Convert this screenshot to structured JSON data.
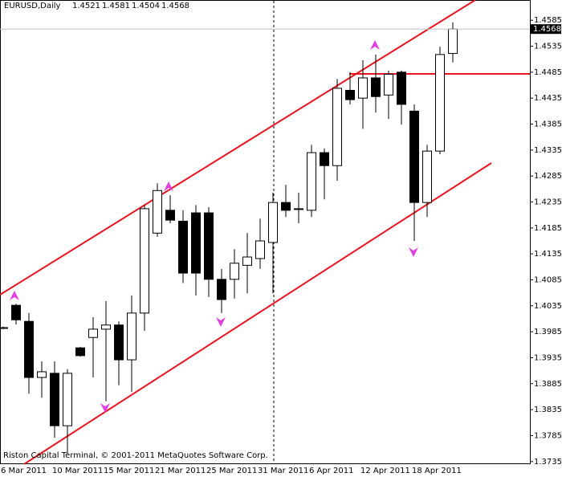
{
  "chart_data": {
    "type": "candlestick",
    "title": "EURUSD,Daily",
    "header_ohlc": [
      1.4521,
      1.4581,
      1.4504,
      1.4568
    ],
    "current_price": 1.4568,
    "footer": "Riston Capital Terminal, © 2001-2011 MetaQuotes Software Corp.",
    "categories": [
      "6 Mar 2011",
      null,
      null,
      null,
      "10 Mar 2011",
      null,
      null,
      null,
      "15 Mar 2011",
      null,
      null,
      null,
      "21 Mar 2011",
      null,
      null,
      null,
      "25 Mar 2011",
      null,
      null,
      null,
      "31 Mar 2011",
      null,
      null,
      null,
      "6 Apr 2011",
      null,
      null,
      null,
      "12 Apr 2011",
      null,
      null,
      null,
      "18 Apr 2011",
      null,
      null,
      null
    ],
    "open": [
      1.3993,
      1.4036,
      1.4005,
      1.3897,
      1.3905,
      1.3804,
      1.3954,
      1.3974,
      1.399,
      1.3998,
      1.3931,
      1.4021,
      1.4175,
      1.4219,
      1.4198,
      1.4214,
      1.4214,
      1.4086,
      1.4086,
      1.4113,
      1.4126,
      1.4157,
      1.4234,
      1.4222,
      1.4219,
      1.433,
      1.4305,
      1.445,
      1.4435,
      1.4474,
      1.4441,
      1.4485,
      1.441,
      1.4234,
      1.4333,
      1.4521
    ],
    "high": [
      1.3995,
      1.4039,
      1.4021,
      1.3928,
      1.3928,
      1.3913,
      1.3956,
      1.4013,
      1.4044,
      1.4005,
      1.4055,
      1.4229,
      1.4271,
      1.4248,
      1.4219,
      1.4229,
      1.4225,
      1.4106,
      1.4144,
      1.4175,
      1.4203,
      1.4253,
      1.4268,
      1.4253,
      1.4345,
      1.4338,
      1.4472,
      1.4485,
      1.4508,
      1.4519,
      1.4488,
      1.4488,
      1.4423,
      1.4345,
      1.4534,
      1.4581
    ],
    "low": [
      1.399,
      1.3999,
      1.3866,
      1.3858,
      1.3781,
      1.375,
      1.3937,
      1.3897,
      1.3851,
      1.3882,
      1.3869,
      1.3987,
      1.4168,
      1.4194,
      1.4079,
      1.4055,
      1.4052,
      1.4021,
      1.4049,
      1.4059,
      1.4106,
      1.4059,
      1.4206,
      1.4194,
      1.4206,
      1.424,
      1.4276,
      1.4423,
      1.4376,
      1.4407,
      1.4395,
      1.4384,
      1.416,
      1.4206,
      1.4327,
      1.4504
    ],
    "close": [
      1.3993,
      1.4008,
      1.3897,
      1.3908,
      1.3804,
      1.3905,
      1.3939,
      1.399,
      1.3998,
      1.3931,
      1.4021,
      1.4222,
      1.4257,
      1.42,
      1.4098,
      1.4098,
      1.4086,
      1.4047,
      1.4117,
      1.4129,
      1.416,
      1.4234,
      1.4219,
      1.4221,
      1.433,
      1.4305,
      1.4454,
      1.4432,
      1.4474,
      1.4438,
      1.4481,
      1.4423,
      1.4234,
      1.4333,
      1.4519,
      1.4568
    ],
    "ylim": [
      1.373,
      1.4624
    ],
    "yticks": [
      1.4585,
      1.4535,
      1.4485,
      1.4435,
      1.4385,
      1.4335,
      1.4285,
      1.4235,
      1.4185,
      1.4135,
      1.4085,
      1.4035,
      1.3985,
      1.3935,
      1.3885,
      1.3835,
      1.3785,
      1.3735
    ]
  }
}
